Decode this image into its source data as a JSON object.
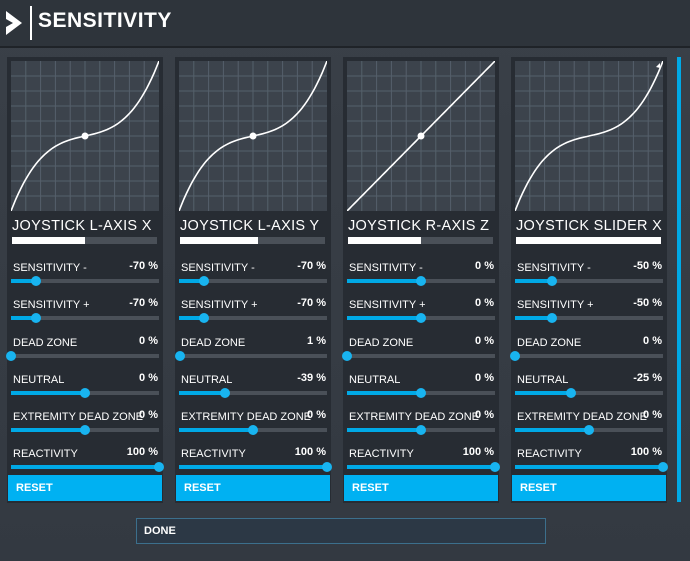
{
  "header": {
    "title": "SENSITIVITY",
    "logo_icon": "play-chevron-icon"
  },
  "colors": {
    "accent": "#00b1f2",
    "card": "#272c33",
    "graph_bg": "#3c434c"
  },
  "axes": [
    {
      "name": "JOYSTICK L-AXIS X",
      "range_fill": 0.5,
      "curve": "cubic",
      "center_point": true,
      "settings": [
        {
          "label": "SENSITIVITY -",
          "value": "-70 %",
          "fraction": 0.17
        },
        {
          "label": "SENSITIVITY +",
          "value": "-70 %",
          "fraction": 0.17
        },
        {
          "label": "DEAD ZONE",
          "value": "0 %",
          "fraction": 0.0
        },
        {
          "label": "NEUTRAL",
          "value": "0 %",
          "fraction": 0.5
        },
        {
          "label": "EXTREMITY DEAD ZONE",
          "value": "0 %",
          "fraction": 0.5
        },
        {
          "label": "REACTIVITY",
          "value": "100 %",
          "fraction": 1.0
        }
      ],
      "reset_label": "RESET"
    },
    {
      "name": "JOYSTICK L-AXIS Y",
      "range_fill": 0.54,
      "curve": "cubic",
      "center_point": true,
      "settings": [
        {
          "label": "SENSITIVITY -",
          "value": "-70 %",
          "fraction": 0.17
        },
        {
          "label": "SENSITIVITY +",
          "value": "-70 %",
          "fraction": 0.17
        },
        {
          "label": "DEAD ZONE",
          "value": "1 %",
          "fraction": 0.01
        },
        {
          "label": "NEUTRAL",
          "value": "-39 %",
          "fraction": 0.31
        },
        {
          "label": "EXTREMITY DEAD ZONE",
          "value": "0 %",
          "fraction": 0.5
        },
        {
          "label": "REACTIVITY",
          "value": "100 %",
          "fraction": 1.0
        }
      ],
      "reset_label": "RESET"
    },
    {
      "name": "JOYSTICK R-AXIS Z",
      "range_fill": 0.5,
      "curve": "linear",
      "center_point": true,
      "settings": [
        {
          "label": "SENSITIVITY -",
          "value": "0 %",
          "fraction": 0.5
        },
        {
          "label": "SENSITIVITY +",
          "value": "0 %",
          "fraction": 0.5
        },
        {
          "label": "DEAD ZONE",
          "value": "0 %",
          "fraction": 0.0
        },
        {
          "label": "NEUTRAL",
          "value": "0 %",
          "fraction": 0.5
        },
        {
          "label": "EXTREMITY DEAD ZONE",
          "value": "0 %",
          "fraction": 0.5
        },
        {
          "label": "REACTIVITY",
          "value": "100 %",
          "fraction": 1.0
        }
      ],
      "reset_label": "RESET"
    },
    {
      "name": "JOYSTICK SLIDER X",
      "range_fill": 1.0,
      "curve": "cubic",
      "center_point": false,
      "settings": [
        {
          "label": "SENSITIVITY -",
          "value": "-50 %",
          "fraction": 0.25
        },
        {
          "label": "SENSITIVITY +",
          "value": "-50 %",
          "fraction": 0.25
        },
        {
          "label": "DEAD ZONE",
          "value": "0 %",
          "fraction": 0.0
        },
        {
          "label": "NEUTRAL",
          "value": "-25 %",
          "fraction": 0.38
        },
        {
          "label": "EXTREMITY DEAD ZONE",
          "value": "0 %",
          "fraction": 0.5
        },
        {
          "label": "REACTIVITY",
          "value": "100 %",
          "fraction": 1.0
        }
      ],
      "reset_label": "RESET"
    }
  ],
  "footer": {
    "done_label": "DONE"
  }
}
